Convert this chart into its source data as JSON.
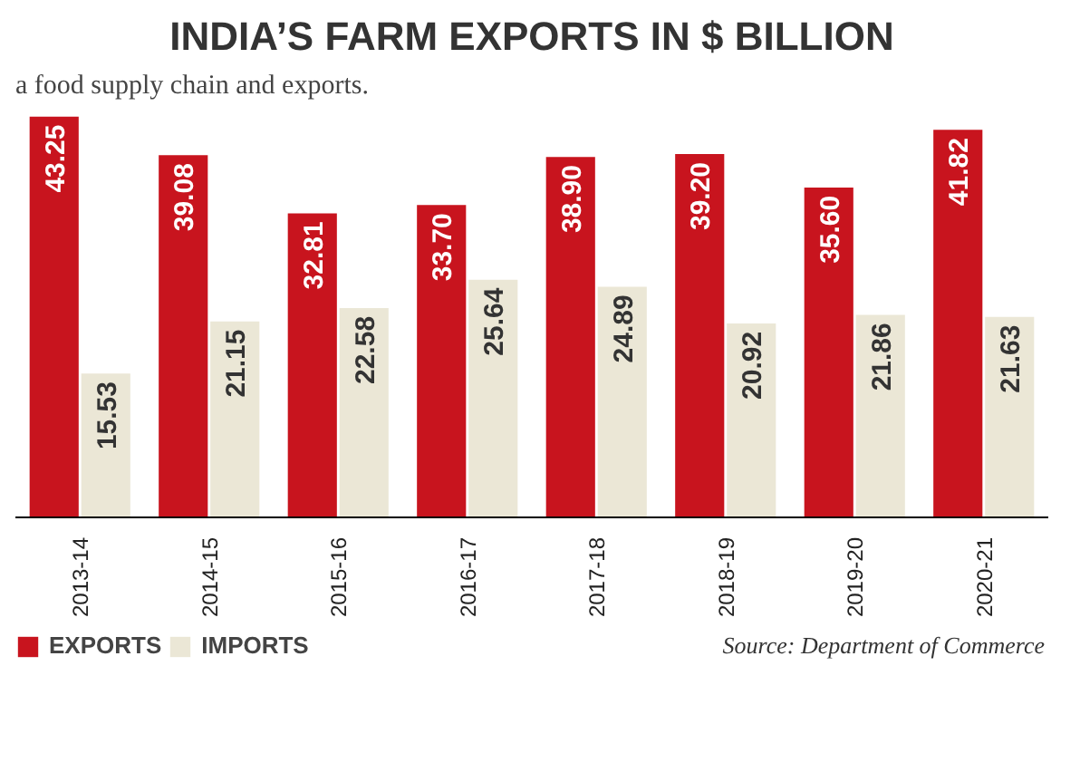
{
  "chart_data": {
    "type": "bar",
    "title": "INDIA’S FARM EXPORTS IN $ BILLION",
    "categories": [
      "2013-14",
      "2014-15",
      "2015-16",
      "2016-17",
      "2017-18",
      "2018-19",
      "2019-20",
      "2020-21"
    ],
    "series": [
      {
        "name": "EXPORTS",
        "color": "#c8141e",
        "values": [
          43.25,
          39.08,
          32.81,
          33.7,
          38.9,
          39.2,
          35.6,
          41.82
        ],
        "value_labels": [
          "43.25",
          "39.08",
          "32.81",
          "33.70",
          "38.90",
          "39.20",
          "35.60",
          "41.82"
        ]
      },
      {
        "name": "IMPORTS",
        "color": "#ebe7d6",
        "values": [
          15.53,
          21.15,
          22.58,
          25.64,
          24.89,
          20.92,
          21.86,
          21.63
        ],
        "value_labels": [
          "15.53",
          "21.15",
          "22.58",
          "25.64",
          "24.89",
          "20.92",
          "21.86",
          "21.63"
        ]
      }
    ],
    "legend": "bottom",
    "tick_labels": "x",
    "annotations": [
      "a food supply chain and exports.",
      "Source: Department of Commerce"
    ]
  }
}
